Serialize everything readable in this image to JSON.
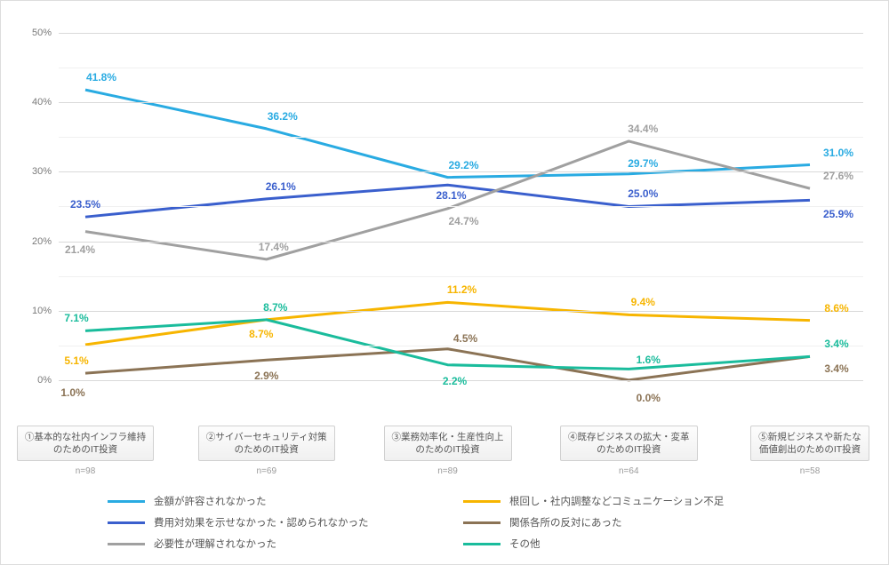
{
  "chart": {
    "type": "line",
    "background_color": "#ffffff",
    "grid_color_major": "#d9d9d9",
    "grid_color_minor": "#f0f0f0",
    "axis_text_color": "#7a7a7a",
    "ylim": [
      -5,
      50
    ],
    "ytick_step": 10,
    "ytick_labels": [
      "0%",
      "10%",
      "20%",
      "30%",
      "40%",
      "50%"
    ],
    "ytick_midlines": [
      5,
      15,
      25,
      35,
      45
    ],
    "categories": [
      {
        "label_line1": "①基本的な社内インフラ維持",
        "label_line2": "のためのIT投資",
        "n": "n=98"
      },
      {
        "label_line1": "②サイバーセキュリティ対策",
        "label_line2": "のためのIT投資",
        "n": "n=69"
      },
      {
        "label_line1": "③業務効率化・生産性向上",
        "label_line2": "のためのIT投資",
        "n": "n=89"
      },
      {
        "label_line1": "④既存ビジネスの拡大・変革",
        "label_line2": "のためのIT投資",
        "n": "n=64"
      },
      {
        "label_line1": "⑤新規ビジネスや新たな",
        "label_line2": "価値創出のためのIT投資",
        "n": "n=58"
      }
    ],
    "series": [
      {
        "name": "金額が許容されなかった",
        "color": "#29abe2",
        "values": [
          41.8,
          36.2,
          29.2,
          29.7,
          31.0
        ],
        "label_dy": [
          -14,
          -14,
          -14,
          -12,
          0
        ],
        "label_dx": [
          18,
          18,
          18,
          16,
          32
        ],
        "last_dx": 32
      },
      {
        "name": "根回し・社内調整などコミュニケーション不足",
        "color": "#f7b500",
        "values": [
          5.1,
          8.7,
          11.2,
          9.4,
          8.6
        ],
        "label_dy": [
          18,
          16,
          -14,
          -14,
          0
        ],
        "label_dx": [
          -10,
          -6,
          16,
          16,
          30
        ],
        "last_dx": 30
      },
      {
        "name": "費用対効果を示せなかった・認められなかった",
        "color": "#3a5fcd",
        "values": [
          23.5,
          26.1,
          28.1,
          25.0,
          25.9
        ],
        "label_dy": [
          -14,
          -14,
          12,
          -14,
          16
        ],
        "label_dx": [
          0,
          16,
          4,
          16,
          32
        ],
        "last_dx": 32
      },
      {
        "name": "関係各所の反対にあった",
        "color": "#8b7355",
        "values": [
          1.0,
          2.9,
          4.5,
          0.0,
          3.4
        ],
        "label_dy": [
          22,
          18,
          -12,
          20,
          14
        ],
        "label_dx": [
          -14,
          0,
          20,
          22,
          30
        ],
        "last_dx": 30
      },
      {
        "name": "必要性が理解されなかった",
        "color": "#a0a0a0",
        "values": [
          21.4,
          17.4,
          24.7,
          34.4,
          27.6
        ],
        "label_dy": [
          20,
          -14,
          14,
          -14,
          0
        ],
        "label_dx": [
          -6,
          8,
          18,
          16,
          32
        ],
        "last_dx": 32
      },
      {
        "name": "その他",
        "color": "#1abc9c",
        "values": [
          7.1,
          8.7,
          2.2,
          1.6,
          3.4
        ],
        "label_dy": [
          -14,
          -14,
          18,
          -10,
          -14
        ],
        "label_dx": [
          -10,
          10,
          8,
          22,
          30
        ],
        "last_dx": 30
      }
    ],
    "legend_order": [
      0,
      1,
      2,
      3,
      4,
      5
    ],
    "line_width": 3,
    "marker": "none",
    "label_fontsize": 12,
    "label_fontweight": 600
  }
}
